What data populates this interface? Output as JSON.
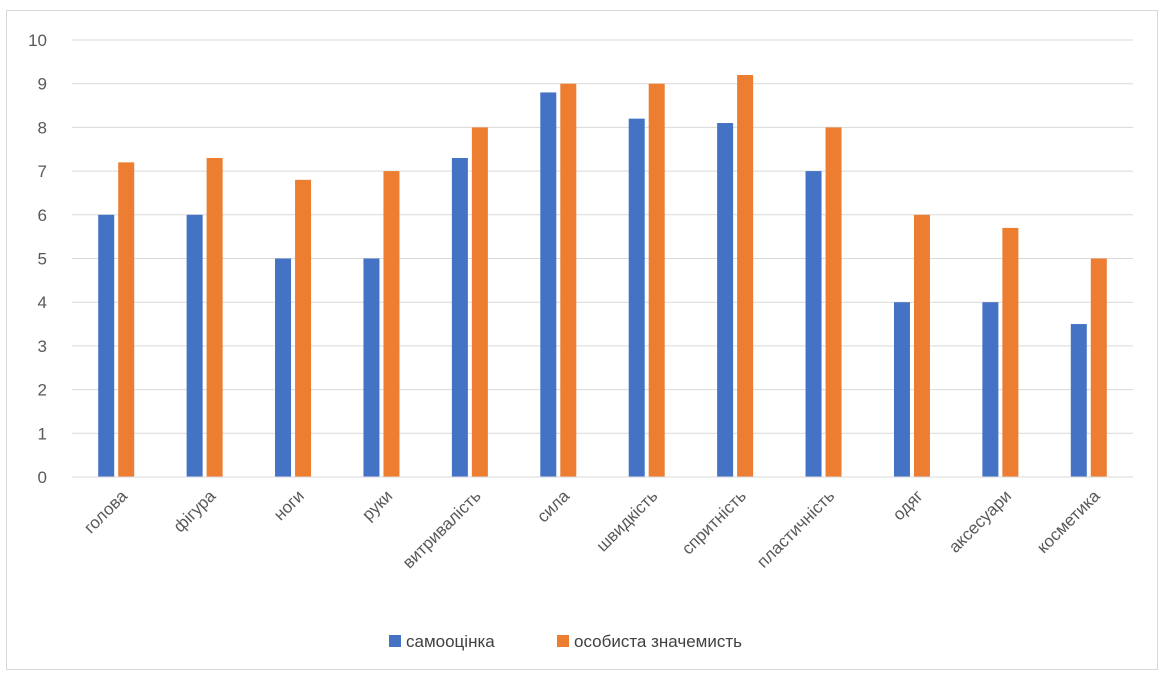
{
  "chart_data": {
    "type": "bar",
    "categories": [
      "голова",
      "фігура",
      "ноги",
      "руки",
      "витривалість",
      "сила",
      "швидкість",
      "спритність",
      "пластичність",
      "одяг",
      "аксесуари",
      "косметика"
    ],
    "series": [
      {
        "name": "самооцінка",
        "color": "#4472c4",
        "values": [
          6,
          6,
          5,
          5,
          7.3,
          8.8,
          8.2,
          8.1,
          7,
          4,
          4,
          3.5
        ]
      },
      {
        "name": "особиста значемисть",
        "color": "#ed7d31",
        "values": [
          7.2,
          7.3,
          6.8,
          7,
          8,
          9,
          9,
          9.2,
          8,
          6,
          5.7,
          5
        ]
      }
    ],
    "title": "",
    "xlabel": "",
    "ylabel": "",
    "ylim": [
      0,
      10
    ],
    "yticks": [
      "0",
      "1",
      "2",
      "3",
      "4",
      "5",
      "6",
      "7",
      "8",
      "9",
      "10"
    ],
    "grid": true,
    "legend": "bottom"
  }
}
